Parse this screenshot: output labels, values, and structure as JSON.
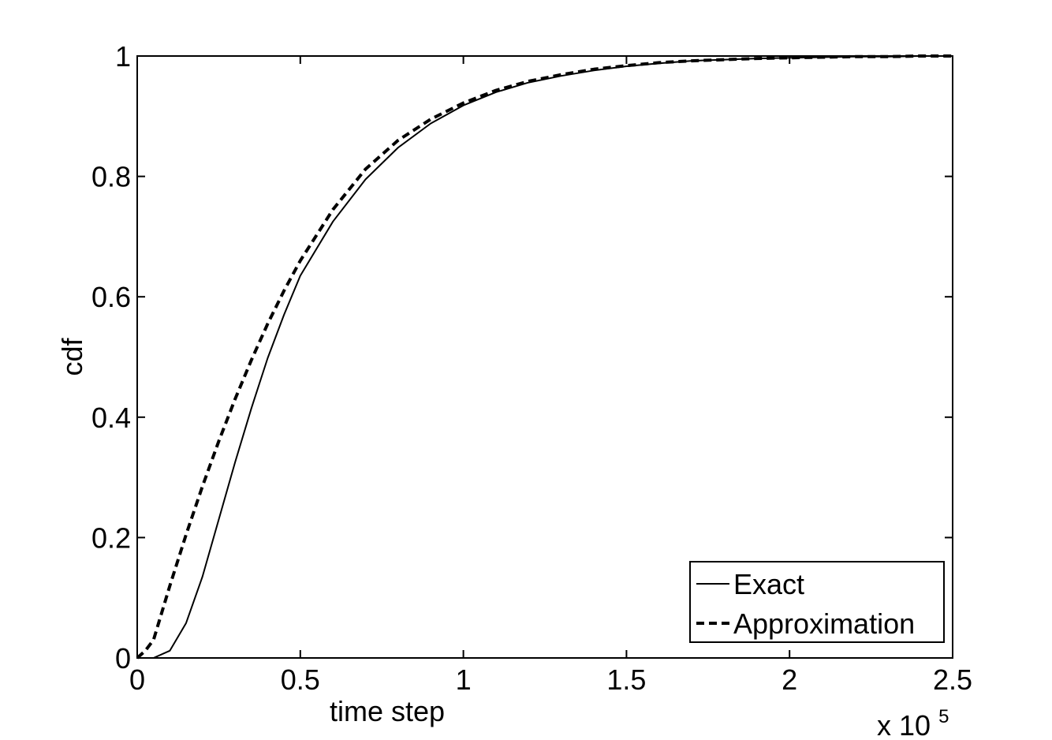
{
  "chart_data": {
    "type": "line",
    "title": "",
    "xlabel": "time step",
    "ylabel": "cdf",
    "x_multiplier_label": {
      "base": "x 10",
      "exponent": "5"
    },
    "xlim": [
      0,
      2.5
    ],
    "ylim": [
      0,
      1
    ],
    "xticks": [
      0,
      0.5,
      1,
      1.5,
      2,
      2.5
    ],
    "xtick_labels": [
      "0",
      "0.5",
      "1",
      "1.5",
      "2",
      "2.5"
    ],
    "yticks": [
      0,
      0.2,
      0.4,
      0.6,
      0.8,
      1
    ],
    "ytick_labels": [
      "0",
      "0.2",
      "0.4",
      "0.6",
      "0.8",
      "1"
    ],
    "grid": false,
    "legend_position": "bottom-right",
    "series": [
      {
        "name": "Exact",
        "style": "solid",
        "color": "#000000",
        "x": [
          0,
          0.05,
          0.1,
          0.15,
          0.2,
          0.25,
          0.3,
          0.35,
          0.4,
          0.45,
          0.5,
          0.6,
          0.7,
          0.8,
          0.9,
          1.0,
          1.1,
          1.2,
          1.3,
          1.4,
          1.5,
          1.6,
          1.7,
          1.8,
          1.9,
          2.0,
          2.1,
          2.2,
          2.3,
          2.4,
          2.5
        ],
        "y": [
          0,
          0.0,
          0.012,
          0.058,
          0.135,
          0.23,
          0.325,
          0.415,
          0.498,
          0.57,
          0.635,
          0.725,
          0.795,
          0.848,
          0.888,
          0.918,
          0.94,
          0.956,
          0.967,
          0.976,
          0.983,
          0.988,
          0.992,
          0.994,
          0.996,
          0.997,
          0.998,
          0.999,
          0.999,
          1.0,
          1.0
        ]
      },
      {
        "name": "Approximation",
        "style": "dashed",
        "color": "#000000",
        "x": [
          0,
          0.025,
          0.05,
          0.1,
          0.15,
          0.2,
          0.25,
          0.3,
          0.35,
          0.4,
          0.45,
          0.5,
          0.6,
          0.7,
          0.8,
          0.9,
          1.0,
          1.1,
          1.2,
          1.3,
          1.4,
          1.5,
          1.6,
          1.7,
          1.8,
          1.9,
          2.0,
          2.1,
          2.2,
          2.3,
          2.4,
          2.5
        ],
        "y": [
          0,
          0.012,
          0.03,
          0.12,
          0.205,
          0.285,
          0.36,
          0.43,
          0.495,
          0.555,
          0.61,
          0.66,
          0.745,
          0.812,
          0.86,
          0.895,
          0.922,
          0.943,
          0.958,
          0.969,
          0.978,
          0.984,
          0.989,
          0.992,
          0.994,
          0.996,
          0.997,
          0.998,
          0.999,
          0.999,
          1.0,
          1.0
        ]
      }
    ]
  }
}
